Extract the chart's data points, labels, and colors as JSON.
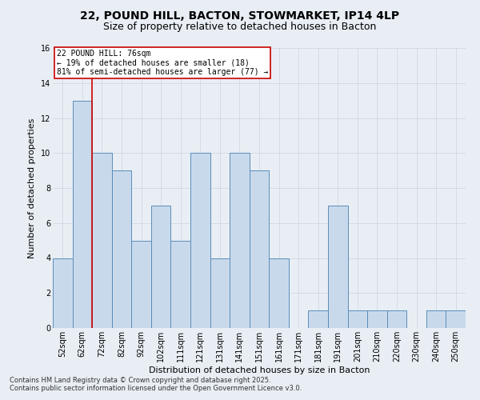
{
  "title_line1": "22, POUND HILL, BACTON, STOWMARKET, IP14 4LP",
  "title_line2": "Size of property relative to detached houses in Bacton",
  "xlabel": "Distribution of detached houses by size in Bacton",
  "ylabel": "Number of detached properties",
  "categories": [
    "52sqm",
    "62sqm",
    "72sqm",
    "82sqm",
    "92sqm",
    "102sqm",
    "111sqm",
    "121sqm",
    "131sqm",
    "141sqm",
    "151sqm",
    "161sqm",
    "171sqm",
    "181sqm",
    "191sqm",
    "201sqm",
    "210sqm",
    "220sqm",
    "230sqm",
    "240sqm",
    "250sqm"
  ],
  "values": [
    4,
    13,
    10,
    9,
    5,
    7,
    5,
    10,
    4,
    10,
    9,
    4,
    0,
    1,
    7,
    1,
    1,
    1,
    0,
    1,
    1
  ],
  "bar_color": "#c9d9ec",
  "bar_edge_color": "#5b8db8",
  "vline_x": 1.5,
  "annotation_text": "22 POUND HILL: 76sqm\n← 19% of detached houses are smaller (18)\n81% of semi-detached houses are larger (77) →",
  "annotation_box_color": "#ffffff",
  "annotation_box_edge_color": "#cc0000",
  "vline_color": "#cc0000",
  "ylim": [
    0,
    16
  ],
  "yticks": [
    0,
    2,
    4,
    6,
    8,
    10,
    12,
    14,
    16
  ],
  "grid_color": "#d0d8e4",
  "bg_color": "#e8eef4",
  "footer_line1": "Contains HM Land Registry data © Crown copyright and database right 2025.",
  "footer_line2": "Contains public sector information licensed under the Open Government Licence v3.0.",
  "title_fontsize": 10,
  "subtitle_fontsize": 9,
  "xlabel_fontsize": 8,
  "ylabel_fontsize": 8,
  "tick_fontsize": 7,
  "annotation_fontsize": 7,
  "footer_fontsize": 6
}
